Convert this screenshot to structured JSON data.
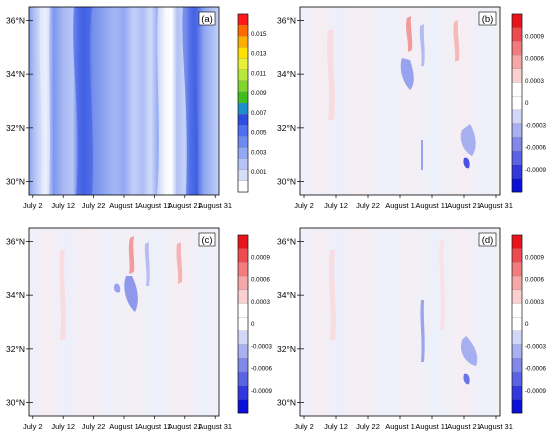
{
  "figure": {
    "type": "multi-panel latitude-time contour maps",
    "panels": 4,
    "layout": "2x2"
  },
  "chart_data": [
    {
      "type": "heatmap",
      "panel_label": "(a)",
      "x_ticks": [
        "July 2",
        "July 12",
        "July 22",
        "August 1",
        "August 11",
        "August 21",
        "August 31"
      ],
      "y_ticks": [
        "30°N",
        "32°N",
        "34°N",
        "36°N"
      ],
      "y_range_deg": [
        29.5,
        36.5
      ],
      "colorbar_labels": [
        "0.015",
        "0.013",
        "0.011",
        "0.009",
        "0.007",
        "0.005",
        "0.003",
        "0.001"
      ],
      "colorbar_colors": [
        "#ff1a1a",
        "#ff6a00",
        "#ffae00",
        "#ffe000",
        "#e8f03a",
        "#b8e83a",
        "#7fd62a",
        "#3fbf1e",
        "#1c8ecc",
        "#2d4de0",
        "#4f6ef0",
        "#6f8af2",
        "#93a8f4",
        "#b6c4f7",
        "#d6def9",
        "#ffffff"
      ],
      "x_label": "",
      "y_label": ""
    },
    {
      "type": "heatmap",
      "panel_label": "(b)",
      "x_ticks": [
        "July 2",
        "July 12",
        "July 22",
        "August 1",
        "August 11",
        "August 21",
        "August 31"
      ],
      "y_ticks": [
        "30°N",
        "32°N",
        "34°N",
        "36°N"
      ],
      "y_range_deg": [
        29.5,
        36.5
      ],
      "colorbar_labels": [
        "0.0009",
        "0.0006",
        "0.0003",
        "0",
        "-0.0003",
        "-0.0006",
        "-0.0009"
      ],
      "colorbar_colors": [
        "#e8141b",
        "#ee4b50",
        "#f37b7e",
        "#f7a7a8",
        "#fbd0d0",
        "#ffffff",
        "#ffffff",
        "#d2d6f7",
        "#a9b0f1",
        "#8089ea",
        "#5b63e5",
        "#3238e0",
        "#0a10d8"
      ],
      "x_label": "",
      "y_label": ""
    },
    {
      "type": "heatmap",
      "panel_label": "(c)",
      "x_ticks": [
        "July 2",
        "July 12",
        "July 22",
        "August 1",
        "August 11",
        "August 21",
        "August 31"
      ],
      "y_ticks": [
        "30°N",
        "32°N",
        "34°N",
        "36°N"
      ],
      "y_range_deg": [
        29.5,
        36.5
      ],
      "colorbar_labels": [
        "0.0009",
        "0.0006",
        "0.0003",
        "0",
        "-0.0003",
        "-0.0006",
        "-0.0009"
      ],
      "colorbar_colors": [
        "#e8141b",
        "#ee4b50",
        "#f37b7e",
        "#f7a7a8",
        "#fbd0d0",
        "#ffffff",
        "#ffffff",
        "#d2d6f7",
        "#a9b0f1",
        "#8089ea",
        "#5b63e5",
        "#3238e0",
        "#0a10d8"
      ],
      "x_label": "",
      "y_label": ""
    },
    {
      "type": "heatmap",
      "panel_label": "(d)",
      "x_ticks": [
        "July 2",
        "July 12",
        "July 22",
        "August 1",
        "August 11",
        "August 21",
        "August 31"
      ],
      "y_ticks": [
        "30°N",
        "32°N",
        "34°N",
        "36°N"
      ],
      "y_range_deg": [
        29.5,
        36.5
      ],
      "colorbar_labels": [
        "0.0009",
        "0.0006",
        "0.0003",
        "0",
        "-0.0003",
        "-0.0006",
        "-0.0009"
      ],
      "colorbar_colors": [
        "#e8141b",
        "#ee4b50",
        "#f37b7e",
        "#f7a7a8",
        "#fbd0d0",
        "#ffffff",
        "#ffffff",
        "#d2d6f7",
        "#a9b0f1",
        "#8089ea",
        "#5b63e5",
        "#3238e0",
        "#0a10d8"
      ],
      "x_label": "",
      "y_label": ""
    }
  ]
}
